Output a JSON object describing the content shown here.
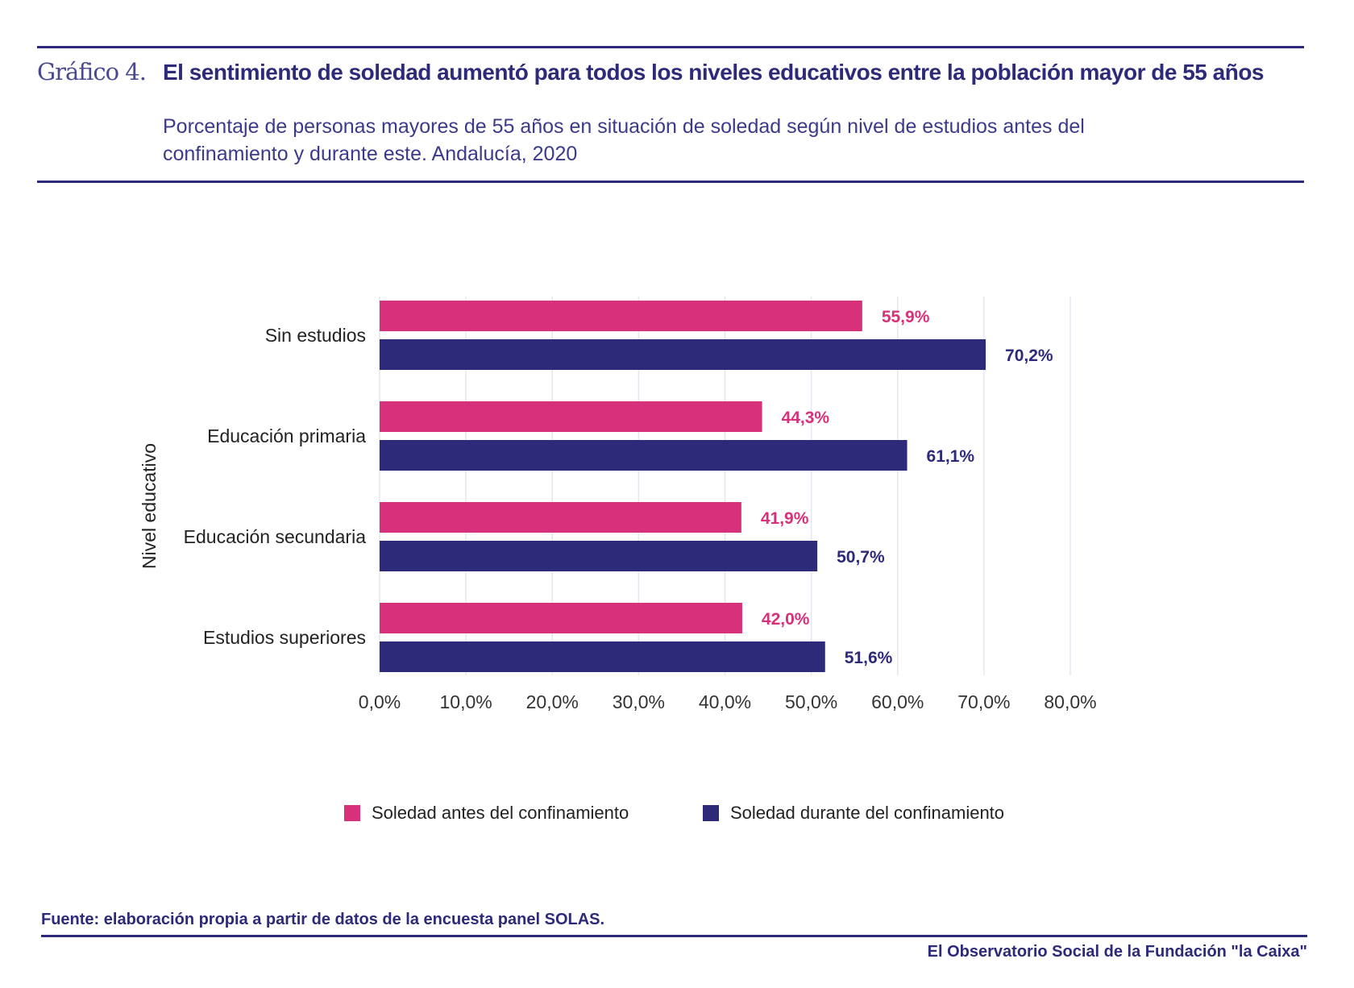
{
  "header": {
    "label": "Gráfico 4.",
    "title": "El sentimiento de soledad aumentó para todos los niveles educativos entre la población mayor de 55 años",
    "subtitle": "Porcentaje de personas mayores de 55 años en situación de soledad según nivel de estudios antes del confinamiento y durante este. Andalucía, 2020"
  },
  "chart_data": {
    "type": "bar",
    "orientation": "horizontal",
    "ylabel": "Nivel educativo",
    "xlabel": "",
    "categories": [
      "Sin estudios",
      "Educación primaria",
      "Educación secundaria",
      "Estudios superiores"
    ],
    "series": [
      {
        "name": "Soledad antes del confinamiento",
        "color": "#d6317a",
        "values": [
          55.9,
          44.3,
          41.9,
          42.0
        ],
        "labels": [
          "55,9%",
          "44,3%",
          "41,9%",
          "42,0%"
        ]
      },
      {
        "name": "Soledad durante del confinamiento",
        "color": "#2d2a7a",
        "values": [
          70.2,
          61.1,
          50.7,
          51.6
        ],
        "labels": [
          "70,2%",
          "61,1%",
          "50,7%",
          "51,6%"
        ]
      }
    ],
    "xlim": [
      0,
      80
    ],
    "xticks": [
      "0,0%",
      "10,0%",
      "20,0%",
      "30,0%",
      "40,0%",
      "50,0%",
      "60,0%",
      "70,0%",
      "80,0%"
    ],
    "grid": true,
    "legend": "bottom"
  },
  "footer": {
    "source": "Fuente:  elaboración propia a partir de datos de la encuesta panel SOLAS.",
    "publisher": "El Observatorio Social de la Fundación \"la Caixa\""
  }
}
